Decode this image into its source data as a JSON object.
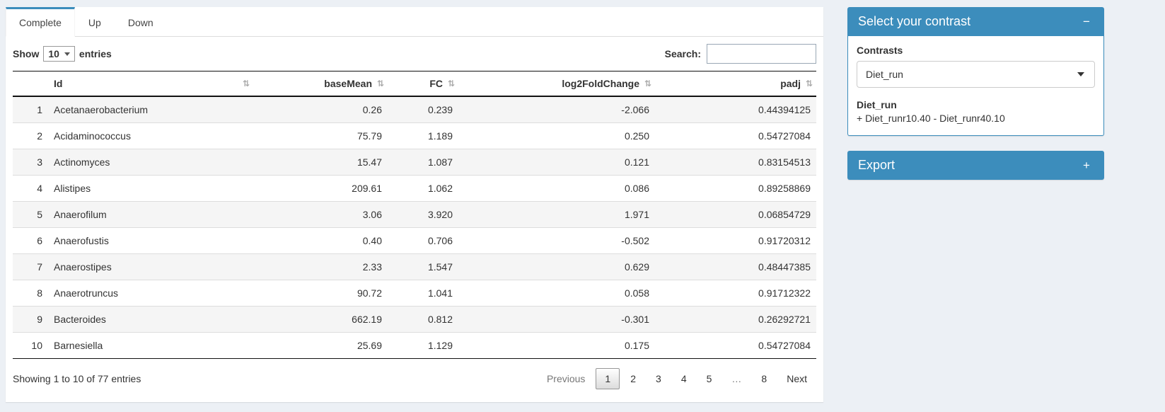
{
  "colors": {
    "accent": "#3c8dbc"
  },
  "icons": {
    "sort": "⇅"
  },
  "tabs": [
    {
      "label": "Complete",
      "active": true
    },
    {
      "label": "Up",
      "active": false
    },
    {
      "label": "Down",
      "active": false
    }
  ],
  "table_controls": {
    "show_label": "Show",
    "page_length": "10",
    "entries_label": "entries",
    "search_label": "Search:",
    "search_value": ""
  },
  "table": {
    "headers": [
      "Id",
      "baseMean",
      "FC",
      "log2FoldChange",
      "padj"
    ],
    "rows": [
      [
        "1",
        "Acetanaerobacterium",
        "0.26",
        "0.239",
        "-2.066",
        "0.44394125"
      ],
      [
        "2",
        "Acidaminococcus",
        "75.79",
        "1.189",
        "0.250",
        "0.54727084"
      ],
      [
        "3",
        "Actinomyces",
        "15.47",
        "1.087",
        "0.121",
        "0.83154513"
      ],
      [
        "4",
        "Alistipes",
        "209.61",
        "1.062",
        "0.086",
        "0.89258869"
      ],
      [
        "5",
        "Anaerofilum",
        "3.06",
        "3.920",
        "1.971",
        "0.06854729"
      ],
      [
        "6",
        "Anaerofustis",
        "0.40",
        "0.706",
        "-0.502",
        "0.91720312"
      ],
      [
        "7",
        "Anaerostipes",
        "2.33",
        "1.547",
        "0.629",
        "0.48447385"
      ],
      [
        "8",
        "Anaerotruncus",
        "90.72",
        "1.041",
        "0.058",
        "0.91712322"
      ],
      [
        "9",
        "Bacteroides",
        "662.19",
        "0.812",
        "-0.301",
        "0.26292721"
      ],
      [
        "10",
        "Barnesiella",
        "25.69",
        "1.129",
        "0.175",
        "0.54727084"
      ]
    ]
  },
  "footer": {
    "info": "Showing 1 to 10 of 77 entries",
    "pagination": {
      "previous_label": "Previous",
      "pages": [
        "1",
        "2",
        "3",
        "4",
        "5",
        "…",
        "8"
      ],
      "current": "1",
      "next_label": "Next"
    }
  },
  "contrast_box": {
    "title": "Select your contrast",
    "collapse_icon": "−",
    "contrasts_label": "Contrasts",
    "selected": "Diet_run",
    "detail_title": "Diet_run",
    "detail_formula": "+ Diet_runr10.40 - Diet_runr40.10"
  },
  "export_box": {
    "title": "Export",
    "expand_icon": "+"
  }
}
